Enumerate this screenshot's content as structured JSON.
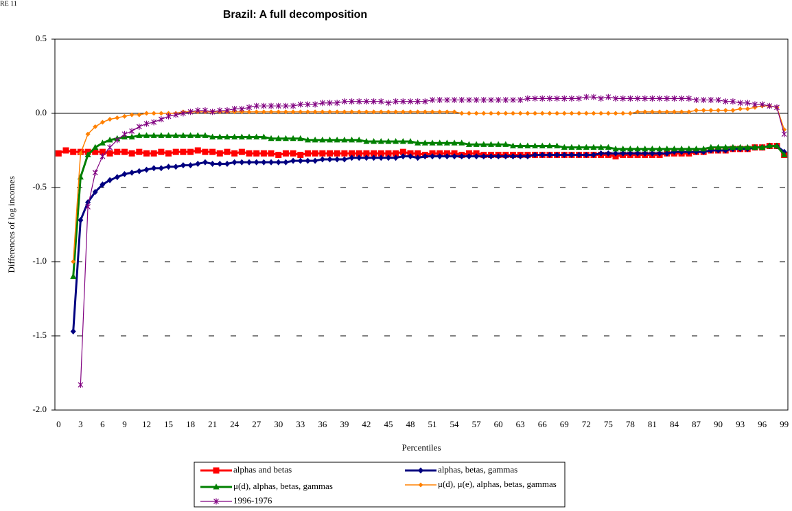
{
  "header_note": "RE 11",
  "chart_data": {
    "type": "line",
    "title": "Brazil: A full decomposition",
    "x_label": "Percentiles",
    "y_label": "Differences of log incomes",
    "categories": [
      "0",
      null,
      null,
      "3",
      null,
      null,
      "6",
      null,
      null,
      "9",
      null,
      null,
      "12",
      null,
      null,
      "15",
      null,
      null,
      "18",
      null,
      null,
      "21",
      null,
      null,
      "24",
      null,
      null,
      "27",
      null,
      null,
      "30",
      null,
      null,
      "33",
      null,
      null,
      "36",
      null,
      null,
      "39",
      null,
      null,
      "42",
      null,
      null,
      "45",
      null,
      null,
      "48",
      null,
      null,
      "51",
      null,
      null,
      "54",
      null,
      null,
      "57",
      null,
      null,
      "60",
      null,
      null,
      "63",
      null,
      null,
      "66",
      null,
      null,
      "69",
      null,
      null,
      "72",
      null,
      null,
      "75",
      null,
      null,
      "78",
      null,
      null,
      "81",
      null,
      null,
      "84",
      null,
      null,
      "87",
      null,
      null,
      "90",
      null,
      null,
      "93",
      null,
      null,
      "96",
      null,
      null,
      "99"
    ],
    "ylim": [
      -2,
      0.5
    ],
    "yticks": [
      0.5,
      {
        "value": 0,
        "label": "0.0"
      },
      -0.5,
      {
        "value": -1,
        "label": "-1.0"
      },
      -1.5,
      {
        "value": -2,
        "label": "-2.0"
      }
    ],
    "grid": "dashed",
    "series": [
      {
        "name": "alphas and betas",
        "color": "#ff0000",
        "marker": "square",
        "values": [
          -0.27,
          -0.25,
          -0.26,
          -0.26,
          -0.26,
          -0.26,
          -0.26,
          -0.27,
          -0.26,
          -0.26,
          -0.27,
          -0.26,
          -0.27,
          -0.27,
          -0.26,
          -0.27,
          -0.26,
          -0.26,
          -0.26,
          -0.25,
          -0.26,
          -0.26,
          -0.27,
          -0.26,
          -0.27,
          -0.26,
          -0.27,
          -0.27,
          -0.27,
          -0.27,
          -0.28,
          -0.27,
          -0.27,
          -0.28,
          -0.27,
          -0.27,
          -0.27,
          -0.27,
          -0.27,
          -0.27,
          -0.27,
          -0.27,
          -0.27,
          -0.27,
          -0.27,
          -0.27,
          -0.27,
          -0.26,
          -0.27,
          -0.27,
          -0.28,
          -0.27,
          -0.27,
          -0.27,
          -0.27,
          -0.28,
          -0.27,
          -0.27,
          -0.28,
          -0.28,
          -0.28,
          -0.28,
          -0.28,
          -0.28,
          -0.28,
          -0.28,
          -0.28,
          -0.28,
          -0.28,
          -0.28,
          -0.28,
          -0.28,
          -0.28,
          -0.28,
          -0.28,
          -0.28,
          -0.29,
          -0.28,
          -0.28,
          -0.28,
          -0.28,
          -0.28,
          -0.28,
          -0.27,
          -0.27,
          -0.27,
          -0.27,
          -0.26,
          -0.26,
          -0.25,
          -0.25,
          -0.25,
          -0.24,
          -0.24,
          -0.24,
          -0.23,
          -0.23,
          -0.22,
          -0.22,
          -0.28
        ]
      },
      {
        "name": "alphas, betas, gammas",
        "color": "#000080",
        "marker": "diamond",
        "values": [
          null,
          null,
          -1.47,
          -0.72,
          -0.6,
          -0.53,
          -0.48,
          -0.45,
          -0.43,
          -0.41,
          -0.4,
          -0.39,
          -0.38,
          -0.37,
          -0.37,
          -0.36,
          -0.36,
          -0.35,
          -0.35,
          -0.34,
          -0.33,
          -0.34,
          -0.34,
          -0.34,
          -0.33,
          -0.33,
          -0.33,
          -0.33,
          -0.33,
          -0.33,
          -0.33,
          -0.33,
          -0.32,
          -0.32,
          -0.32,
          -0.32,
          -0.31,
          -0.31,
          -0.31,
          -0.31,
          -0.3,
          -0.3,
          -0.3,
          -0.3,
          -0.3,
          -0.3,
          -0.3,
          -0.29,
          -0.29,
          -0.3,
          -0.29,
          -0.29,
          -0.29,
          -0.29,
          -0.29,
          -0.29,
          -0.29,
          -0.29,
          -0.29,
          -0.29,
          -0.29,
          -0.29,
          -0.29,
          -0.29,
          -0.29,
          -0.28,
          -0.28,
          -0.28,
          -0.28,
          -0.28,
          -0.28,
          -0.28,
          -0.28,
          -0.28,
          -0.27,
          -0.27,
          -0.27,
          -0.27,
          -0.27,
          -0.27,
          -0.27,
          -0.27,
          -0.27,
          -0.27,
          -0.26,
          -0.26,
          -0.26,
          -0.26,
          -0.26,
          -0.25,
          -0.25,
          -0.25,
          -0.24,
          -0.24,
          -0.24,
          -0.23,
          -0.23,
          -0.22,
          -0.22,
          -0.26
        ]
      },
      {
        "name": "μ(d), alphas, betas, gammas",
        "color": "#008000",
        "marker": "triangle",
        "values": [
          null,
          null,
          -1.1,
          -0.43,
          -0.28,
          -0.23,
          -0.2,
          -0.18,
          -0.17,
          -0.16,
          -0.16,
          -0.15,
          -0.15,
          -0.15,
          -0.15,
          -0.15,
          -0.15,
          -0.15,
          -0.15,
          -0.15,
          -0.15,
          -0.16,
          -0.16,
          -0.16,
          -0.16,
          -0.16,
          -0.16,
          -0.16,
          -0.16,
          -0.17,
          -0.17,
          -0.17,
          -0.17,
          -0.17,
          -0.18,
          -0.18,
          -0.18,
          -0.18,
          -0.18,
          -0.18,
          -0.18,
          -0.18,
          -0.19,
          -0.19,
          -0.19,
          -0.19,
          -0.19,
          -0.19,
          -0.19,
          -0.2,
          -0.2,
          -0.2,
          -0.2,
          -0.2,
          -0.2,
          -0.2,
          -0.21,
          -0.21,
          -0.21,
          -0.21,
          -0.21,
          -0.21,
          -0.22,
          -0.22,
          -0.22,
          -0.22,
          -0.22,
          -0.22,
          -0.22,
          -0.23,
          -0.23,
          -0.23,
          -0.23,
          -0.23,
          -0.23,
          -0.23,
          -0.24,
          -0.24,
          -0.24,
          -0.24,
          -0.24,
          -0.24,
          -0.24,
          -0.24,
          -0.24,
          -0.24,
          -0.24,
          -0.24,
          -0.24,
          -0.23,
          -0.23,
          -0.23,
          -0.23,
          -0.23,
          -0.23,
          -0.23,
          -0.23,
          -0.22,
          -0.22,
          -0.28
        ]
      },
      {
        "name": "μ(d), μ(e), alphas, betas, gammas",
        "color": "#ff8000",
        "marker": "smalldiamond",
        "values": [
          null,
          null,
          -1.0,
          -0.27,
          -0.14,
          -0.09,
          -0.06,
          -0.04,
          -0.03,
          -0.02,
          -0.01,
          -0.01,
          0.0,
          0.0,
          0.0,
          0.0,
          0.0,
          0.01,
          0.01,
          0.01,
          0.01,
          0.01,
          0.01,
          0.01,
          0.01,
          0.01,
          0.01,
          0.01,
          0.01,
          0.01,
          0.01,
          0.01,
          0.01,
          0.01,
          0.01,
          0.01,
          0.01,
          0.01,
          0.01,
          0.01,
          0.01,
          0.01,
          0.01,
          0.01,
          0.01,
          0.01,
          0.01,
          0.01,
          0.01,
          0.01,
          0.01,
          0.01,
          0.01,
          0.01,
          0.01,
          0.0,
          0.0,
          0.0,
          0.0,
          0.0,
          0.0,
          0.0,
          0.0,
          0.0,
          0.0,
          0.0,
          0.0,
          0.0,
          0.0,
          0.0,
          0.0,
          0.0,
          0.0,
          0.0,
          0.0,
          0.0,
          0.0,
          0.0,
          0.0,
          0.01,
          0.01,
          0.01,
          0.01,
          0.01,
          0.01,
          0.01,
          0.01,
          0.02,
          0.02,
          0.02,
          0.02,
          0.02,
          0.02,
          0.03,
          0.03,
          0.04,
          0.05,
          0.05,
          0.04,
          -0.11
        ]
      },
      {
        "name": "1996-1976",
        "color": "#800080",
        "marker": "star",
        "values": [
          null,
          null,
          null,
          -1.83,
          -0.63,
          -0.4,
          -0.29,
          -0.23,
          -0.18,
          -0.14,
          -0.12,
          -0.09,
          -0.07,
          -0.06,
          -0.04,
          -0.02,
          -0.01,
          0.0,
          0.01,
          0.02,
          0.02,
          0.01,
          0.02,
          0.02,
          0.03,
          0.03,
          0.04,
          0.05,
          0.05,
          0.05,
          0.05,
          0.05,
          0.05,
          0.06,
          0.06,
          0.06,
          0.07,
          0.07,
          0.07,
          0.08,
          0.08,
          0.08,
          0.08,
          0.08,
          0.08,
          0.07,
          0.08,
          0.08,
          0.08,
          0.08,
          0.08,
          0.09,
          0.09,
          0.09,
          0.09,
          0.09,
          0.09,
          0.09,
          0.09,
          0.09,
          0.09,
          0.09,
          0.09,
          0.09,
          0.1,
          0.1,
          0.1,
          0.1,
          0.1,
          0.1,
          0.1,
          0.1,
          0.11,
          0.11,
          0.1,
          0.11,
          0.1,
          0.1,
          0.1,
          0.1,
          0.1,
          0.1,
          0.1,
          0.1,
          0.1,
          0.1,
          0.1,
          0.09,
          0.09,
          0.09,
          0.09,
          0.08,
          0.08,
          0.07,
          0.07,
          0.06,
          0.06,
          0.05,
          0.04,
          -0.14
        ]
      }
    ]
  }
}
